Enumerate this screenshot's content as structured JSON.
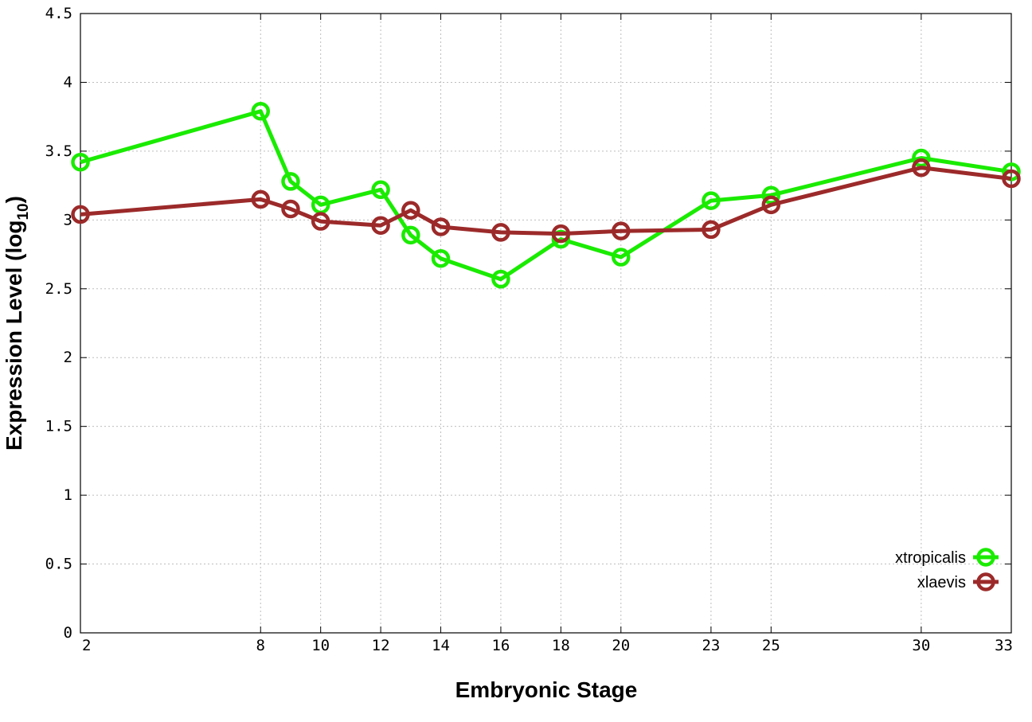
{
  "chart_data": {
    "type": "line",
    "xlabel": "Embryonic Stage",
    "ylabel_main": "Expression Level (log",
    "ylabel_sub": "10",
    "ylabel_close": ")",
    "xlim": [
      2,
      33
    ],
    "ylim": [
      0,
      4.5
    ],
    "grid": true,
    "legend_position": "bottom-right",
    "x_ticks": [
      2,
      8,
      10,
      12,
      14,
      16,
      18,
      20,
      23,
      25,
      30,
      33
    ],
    "y_ticks": [
      0,
      0.5,
      1,
      1.5,
      2,
      2.5,
      3,
      3.5,
      4,
      4.5
    ],
    "y_tick_labels": [
      "0",
      "0.5",
      "1",
      "1.5",
      "2",
      "2.5",
      "3",
      "3.5",
      "4",
      "4.5"
    ],
    "series": [
      {
        "name": "xtropicalis",
        "color": "#1aeb00",
        "x": [
          2,
          8,
          9,
          10,
          12,
          13,
          14,
          16,
          18,
          20,
          23,
          25,
          30,
          33
        ],
        "y": [
          3.42,
          3.79,
          3.28,
          3.11,
          3.22,
          2.89,
          2.72,
          2.57,
          2.86,
          2.73,
          3.14,
          3.18,
          3.45,
          3.35
        ]
      },
      {
        "name": "xlaevis",
        "color": "#9c2a2a",
        "x": [
          2,
          8,
          9,
          10,
          12,
          13,
          14,
          16,
          18,
          20,
          23,
          25,
          30,
          33
        ],
        "y": [
          3.04,
          3.15,
          3.08,
          2.99,
          2.96,
          3.07,
          2.95,
          2.91,
          2.9,
          2.92,
          2.93,
          3.11,
          3.38,
          3.3
        ]
      }
    ]
  }
}
